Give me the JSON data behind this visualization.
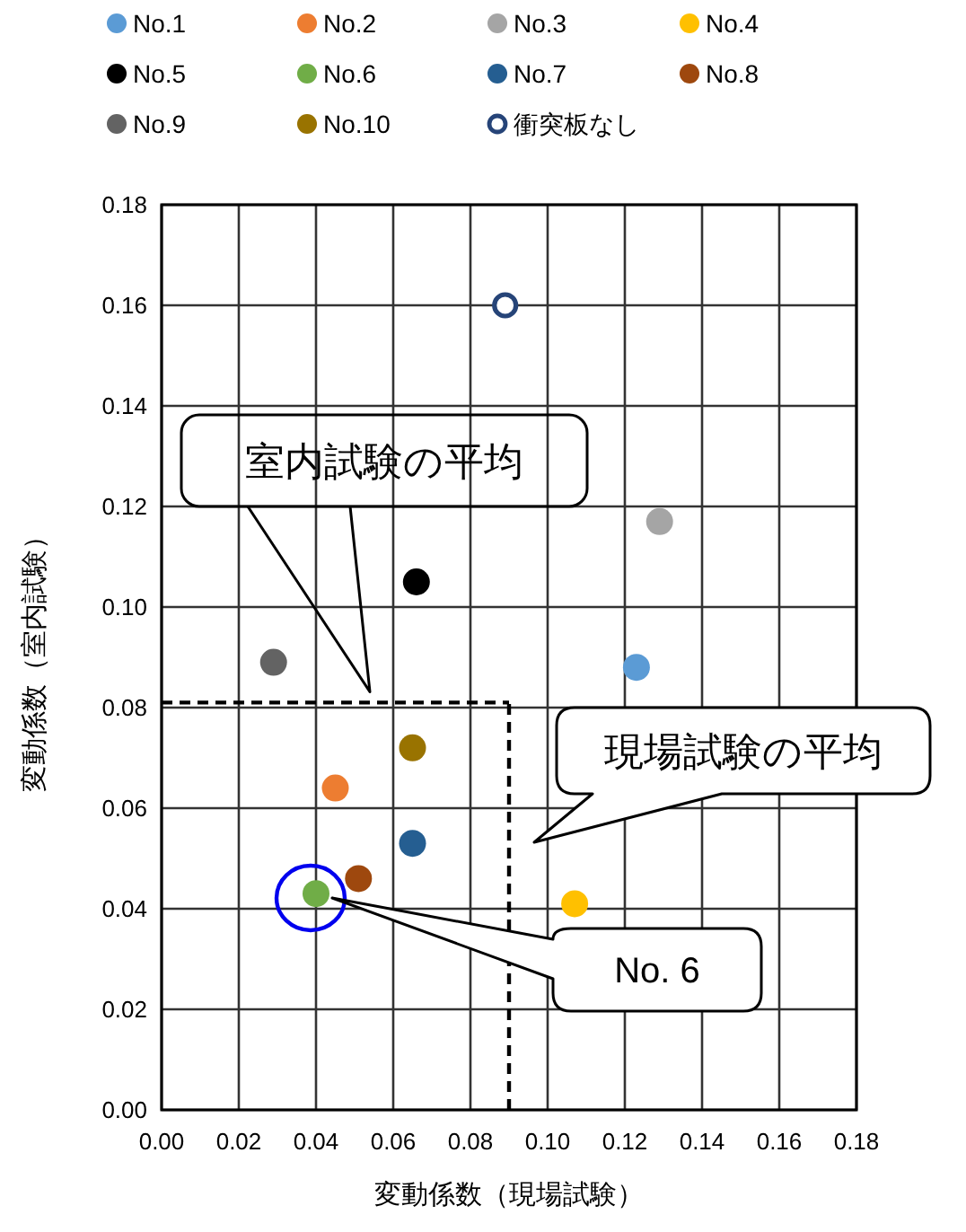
{
  "chart_data": {
    "type": "scatter",
    "xlabel": "変動係数（現場試験）",
    "ylabel": "変動係数（室内試験）",
    "xlim": [
      0,
      0.18
    ],
    "ylim": [
      0,
      0.18
    ],
    "xticks": [
      {
        "value": 0,
        "label": "0.00"
      },
      {
        "value": 0.02,
        "label": "0.02"
      },
      {
        "value": 0.04,
        "label": "0.04"
      },
      {
        "value": 0.06,
        "label": "0.06"
      },
      {
        "value": 0.08,
        "label": "0.08"
      },
      {
        "value": 0.1,
        "label": "0.10"
      },
      {
        "value": 0.12,
        "label": "0.12"
      },
      {
        "value": 0.14,
        "label": "0.14"
      },
      {
        "value": 0.16,
        "label": "0.16"
      },
      {
        "value": 0.18,
        "label": "0.18"
      }
    ],
    "yticks": [
      {
        "value": 0,
        "label": "0.00"
      },
      {
        "value": 0.02,
        "label": "0.02"
      },
      {
        "value": 0.04,
        "label": "0.04"
      },
      {
        "value": 0.06,
        "label": "0.06"
      },
      {
        "value": 0.08,
        "label": "0.08"
      },
      {
        "value": 0.1,
        "label": "0.10"
      },
      {
        "value": 0.12,
        "label": "0.12"
      },
      {
        "value": 0.14,
        "label": "0.14"
      },
      {
        "value": 0.16,
        "label": "0.16"
      },
      {
        "value": 0.18,
        "label": "0.18"
      }
    ],
    "grid": true,
    "legend": "top",
    "marker": "circle",
    "series": [
      {
        "name": "No.1",
        "color": "#5b9bd5",
        "x": [
          0.123
        ],
        "values": [
          0.088
        ]
      },
      {
        "name": "No.2",
        "color": "#ed7d31",
        "x": [
          0.045
        ],
        "values": [
          0.064
        ]
      },
      {
        "name": "No.3",
        "color": "#a5a5a5",
        "x": [
          0.129
        ],
        "values": [
          0.117
        ]
      },
      {
        "name": "No.4",
        "color": "#ffc000",
        "x": [
          0.107
        ],
        "values": [
          0.041
        ]
      },
      {
        "name": "No.5",
        "color": "#000000",
        "x": [
          0.066
        ],
        "values": [
          0.105
        ]
      },
      {
        "name": "No.6",
        "color": "#70ad47",
        "x": [
          0.04
        ],
        "values": [
          0.043
        ]
      },
      {
        "name": "No.7",
        "color": "#255e91",
        "x": [
          0.065
        ],
        "values": [
          0.053
        ]
      },
      {
        "name": "No.8",
        "color": "#9e480e",
        "x": [
          0.051
        ],
        "values": [
          0.046
        ]
      },
      {
        "name": "No.9",
        "color": "#636363",
        "x": [
          0.029
        ],
        "values": [
          0.089
        ]
      },
      {
        "name": "No.10",
        "color": "#997300",
        "x": [
          0.065
        ],
        "values": [
          0.072
        ]
      },
      {
        "name": "衝突板なし",
        "color": "#264478",
        "x": [
          0.089
        ],
        "values": [
          0.16
        ],
        "marker": "open circle"
      }
    ],
    "ref_lines": [
      {
        "axis": "x",
        "value": 0.09,
        "color": "#000000",
        "line_style": "dashed"
      },
      {
        "axis": "y",
        "value": 0.081,
        "color": "#000000",
        "line_style": "dashed"
      }
    ],
    "annotations": [
      "室内試験の平均",
      "現場試験の平均",
      "No. 6"
    ]
  }
}
